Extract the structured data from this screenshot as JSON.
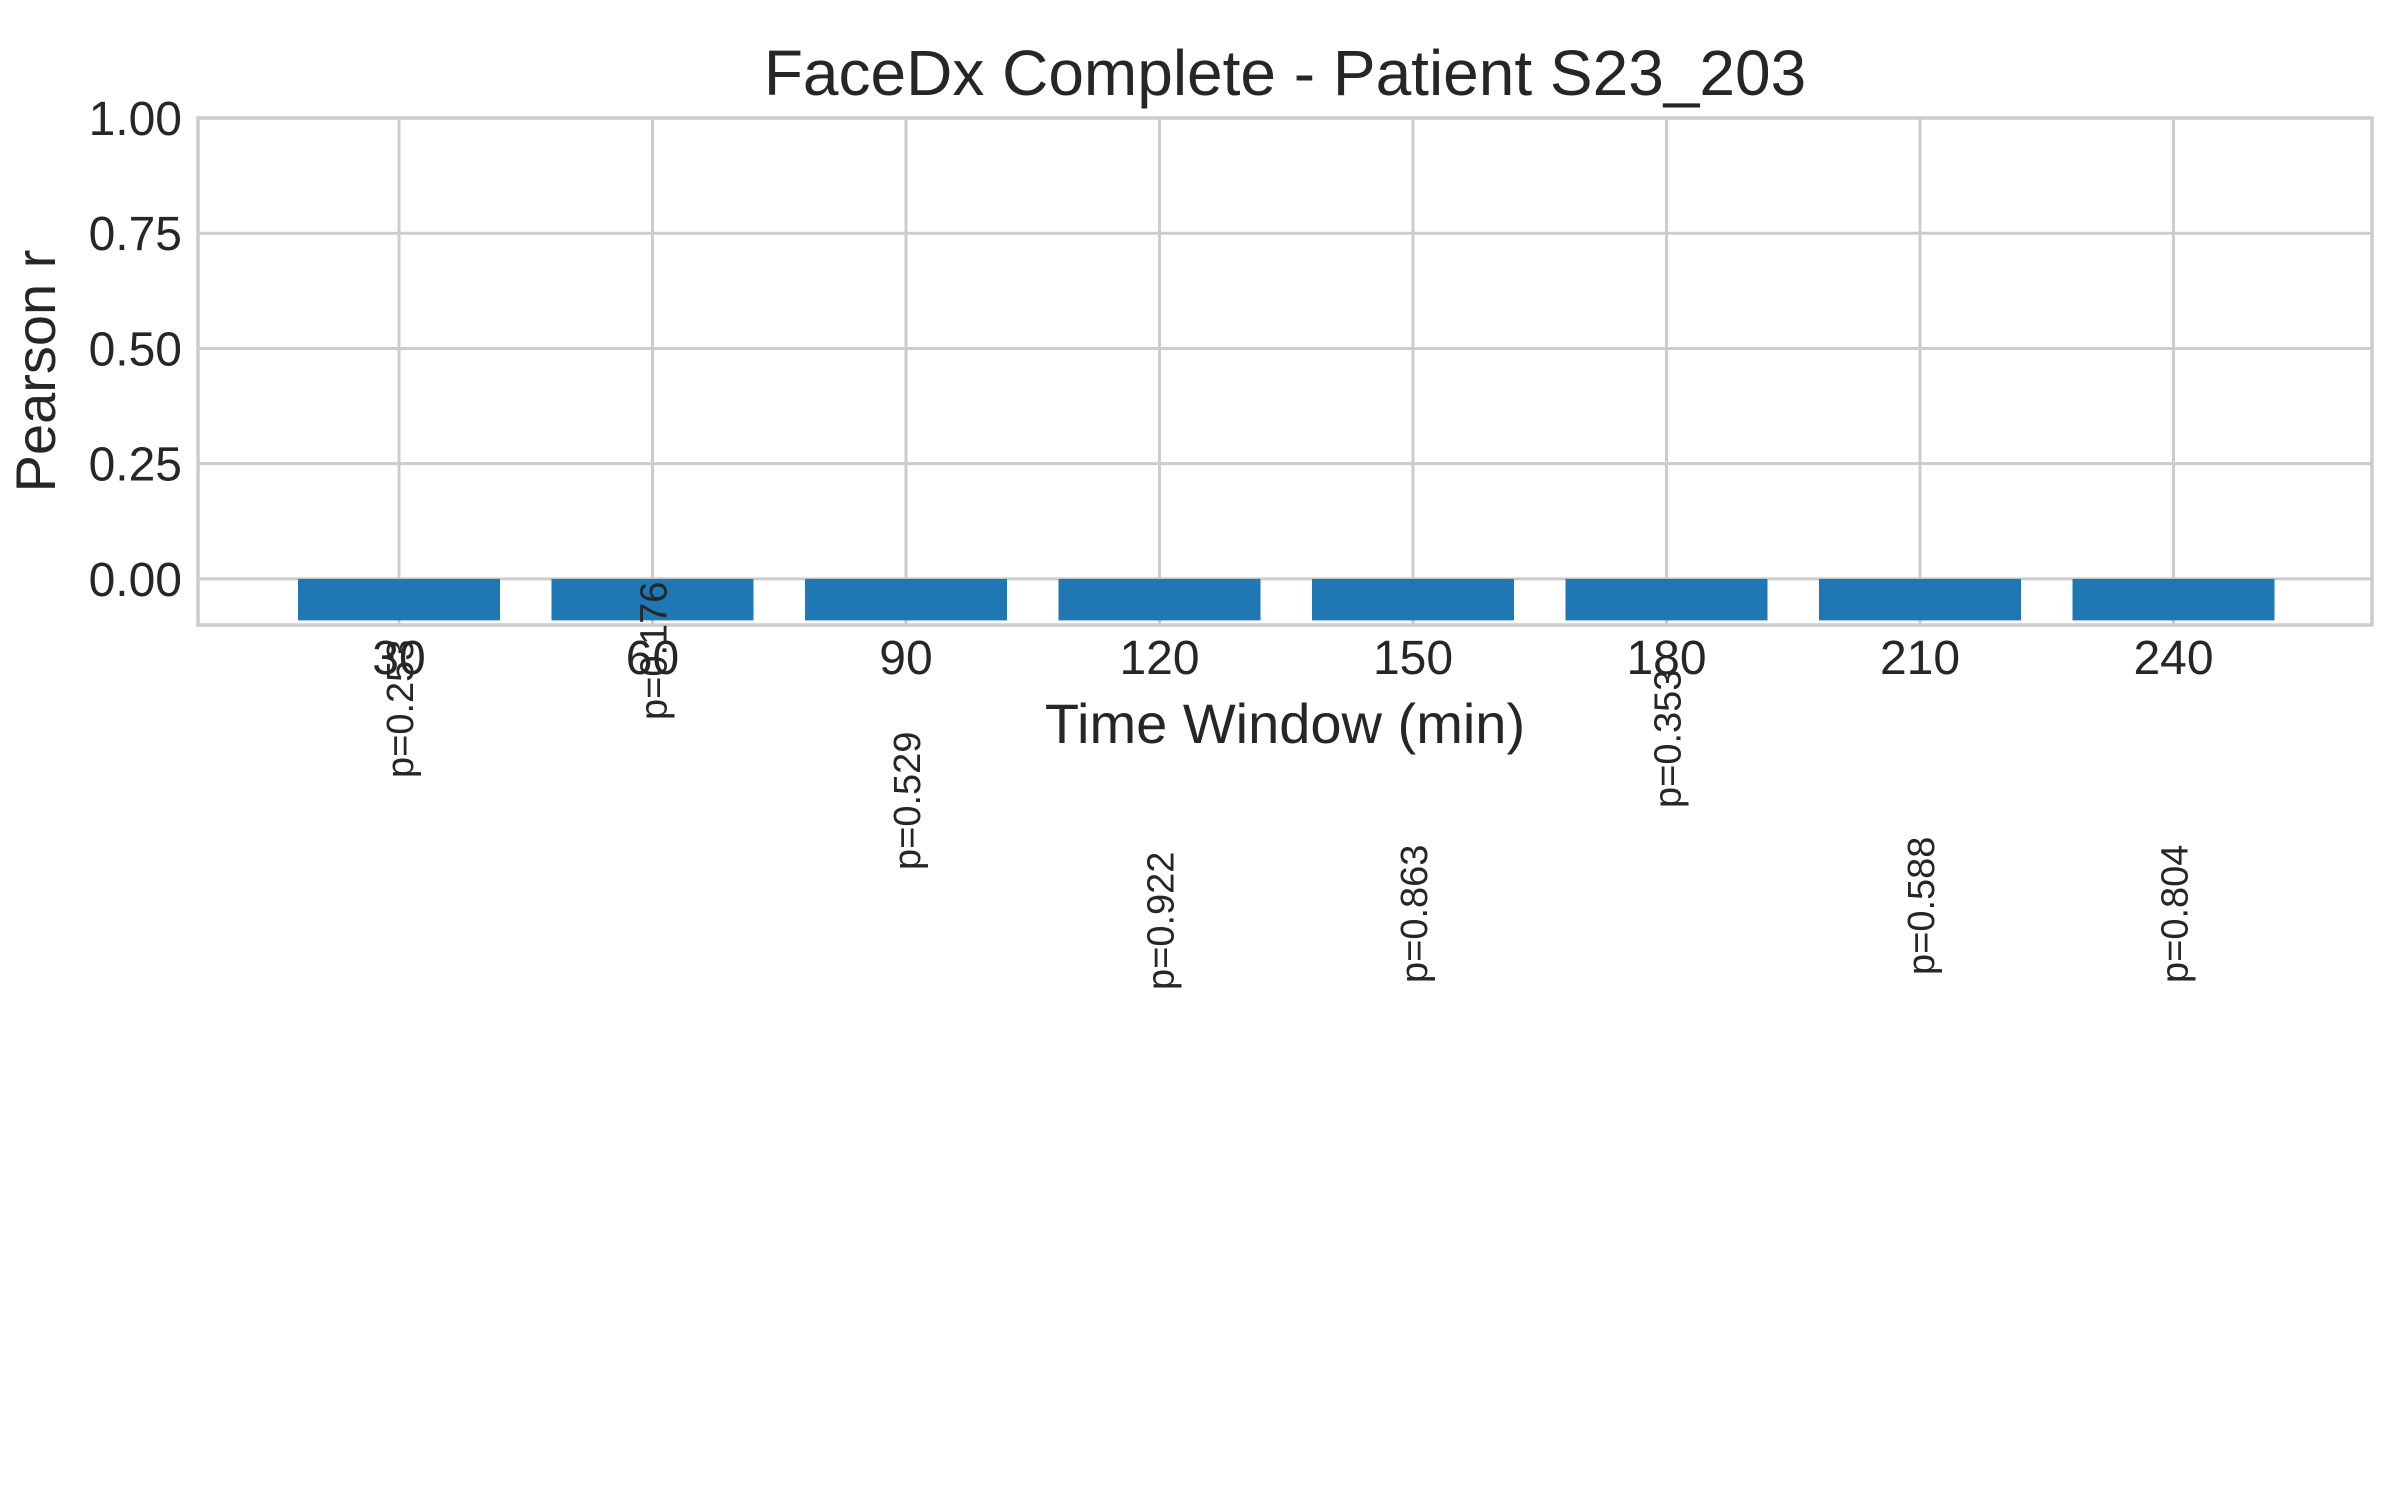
{
  "chart_data": {
    "type": "bar",
    "title": "FaceDx Complete - Patient S23_203",
    "xlabel": "Time Window (min)",
    "ylabel": "Pearson r",
    "categories": [
      "30",
      "60",
      "90",
      "120",
      "150",
      "180",
      "210",
      "240"
    ],
    "series": [
      {
        "values": [
          -0.09,
          -0.09,
          -0.09,
          -0.09,
          -0.09,
          -0.09,
          -0.09,
          -0.09
        ],
        "color": "#1f77b4"
      }
    ],
    "annotations": [
      "p=0.253",
      "p=0.176",
      "p=0.529",
      "p=0.922",
      "p=0.863",
      "p=0.353",
      "p=0.588",
      "p=0.804"
    ],
    "y_ticks": [
      "0.00",
      "0.25",
      "0.50",
      "0.75",
      "1.00"
    ],
    "y_tick_values": [
      0,
      0.25,
      0.5,
      0.75,
      1.0
    ],
    "ylim": [
      -0.1,
      1.0
    ],
    "grid": true,
    "legend": "none"
  }
}
